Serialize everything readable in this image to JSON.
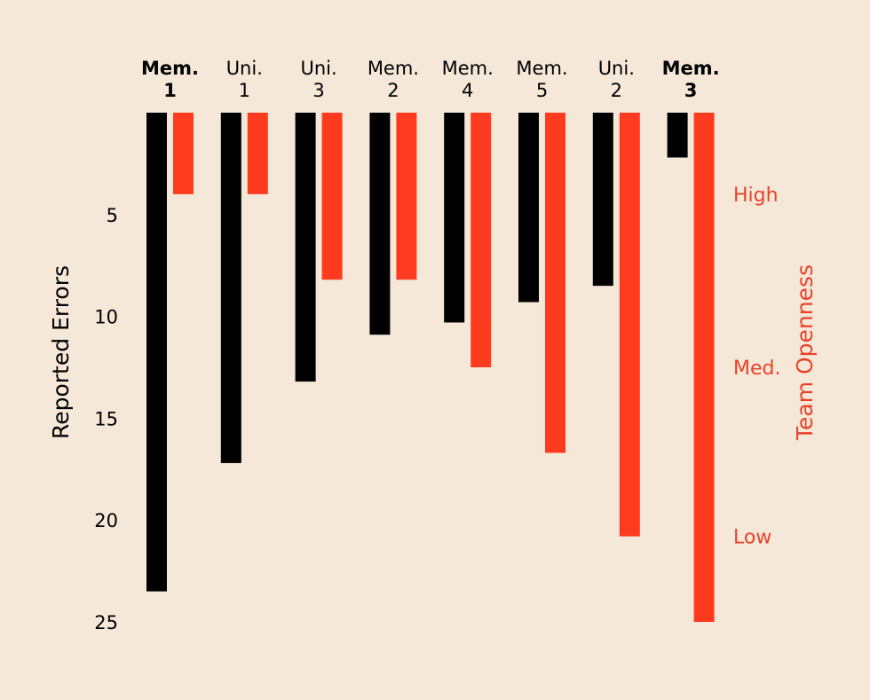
{
  "chart_data": {
    "type": "bar",
    "layout": "inverted-paired-bars",
    "categories": [
      {
        "line1": "Mem.",
        "line2": "1",
        "bold": true
      },
      {
        "line1": "Uni.",
        "line2": "1",
        "bold": false
      },
      {
        "line1": "Uni.",
        "line2": "3",
        "bold": false
      },
      {
        "line1": "Mem.",
        "line2": "2",
        "bold": false
      },
      {
        "line1": "Mem.",
        "line2": "4",
        "bold": false
      },
      {
        "line1": "Mem.",
        "line2": "5",
        "bold": false
      },
      {
        "line1": "Uni.",
        "line2": "2",
        "bold": false
      },
      {
        "line1": "Mem.",
        "line2": "3",
        "bold": true
      }
    ],
    "series": [
      {
        "name": "Reported Errors",
        "axis": "left",
        "color": "#000000",
        "values": [
          23.5,
          17.2,
          13.2,
          10.9,
          10.3,
          9.3,
          8.5,
          2.2
        ]
      },
      {
        "name": "Team Openness",
        "axis": "right",
        "color": "#ff3b1f",
        "values": [
          4,
          4,
          8.2,
          8.2,
          12.5,
          16.7,
          20.8,
          25
        ]
      }
    ],
    "left_axis": {
      "title": "Reported Errors",
      "ticks": [
        "5",
        "10",
        "15",
        "20",
        "25"
      ],
      "tick_values": [
        5,
        10,
        15,
        20,
        25
      ],
      "range": [
        0,
        25
      ]
    },
    "right_axis": {
      "title": "Team Openness",
      "labels": [
        "High",
        "Med.",
        "Low"
      ],
      "label_values": [
        4,
        12.5,
        20.8
      ],
      "color": "#e8432a"
    }
  }
}
